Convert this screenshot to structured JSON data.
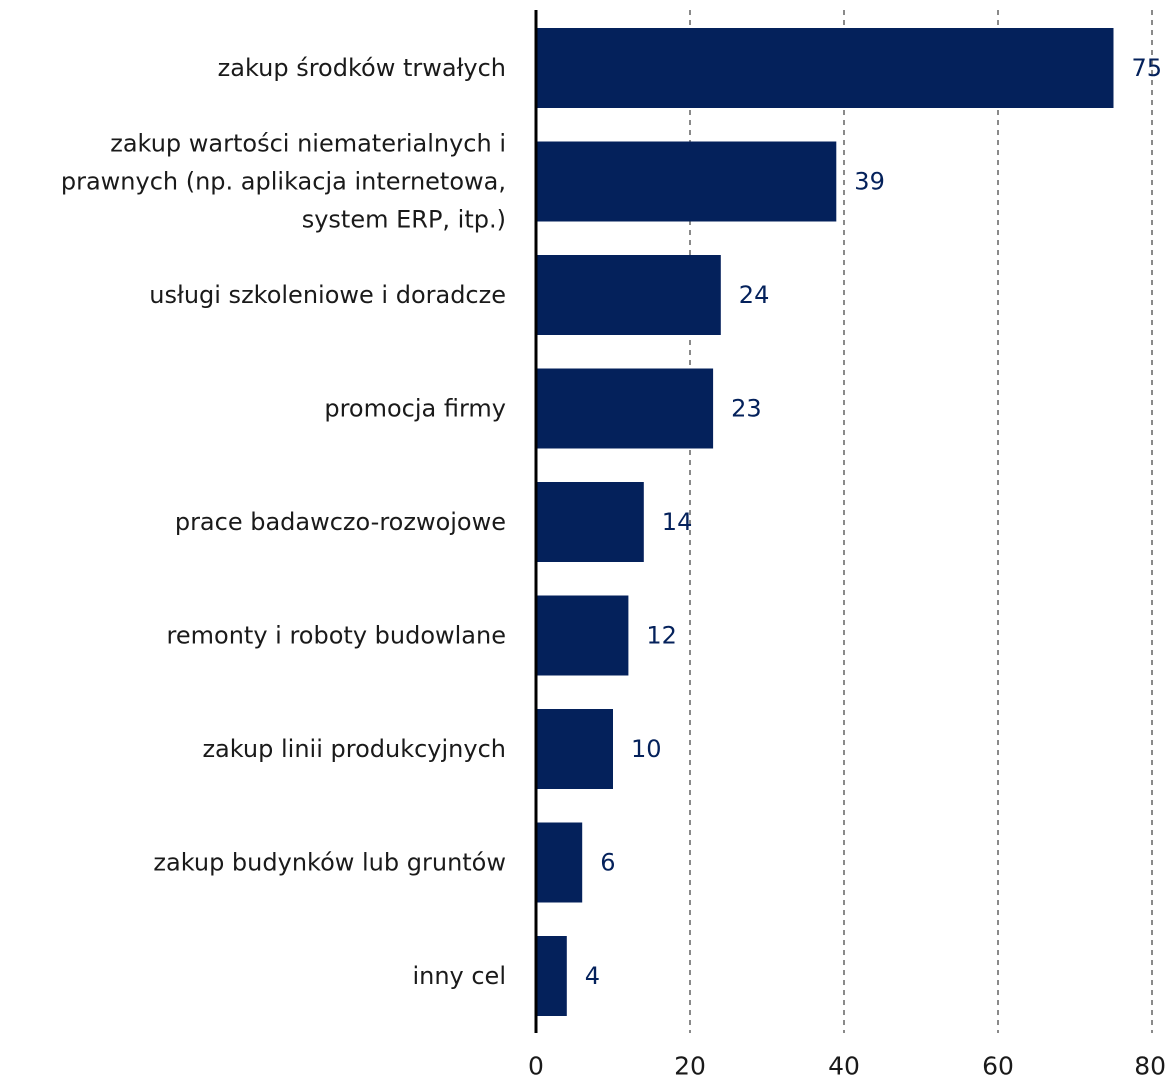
{
  "chart_data": {
    "type": "bar",
    "orientation": "horizontal",
    "categories": [
      "zakup środków trwałych",
      "zakup wartości niematerialnych i prawnych (np. aplikacja internetowa, system ERP, itp.)",
      "usługi szkoleniowe i doradcze",
      "promocja firmy",
      "prace badawczo-rozwojowe",
      "remonty i roboty budowlane",
      "zakup linii produkcyjnych",
      "zakup budynków lub gruntów",
      "inny cel"
    ],
    "category_lines": [
      [
        "zakup środków trwałych"
      ],
      [
        "zakup wartości niematerialnych i",
        "prawnych (np. aplikacja internetowa,",
        "system ERP, itp.)"
      ],
      [
        "usługi szkoleniowe i doradcze"
      ],
      [
        "promocja firmy"
      ],
      [
        "prace badawczo-rozwojowe"
      ],
      [
        "remonty i roboty budowlane"
      ],
      [
        "zakup linii produkcyjnych"
      ],
      [
        "zakup budynków lub gruntów"
      ],
      [
        "inny cel"
      ]
    ],
    "values": [
      75,
      39,
      24,
      23,
      14,
      12,
      10,
      6,
      4
    ],
    "value_labels": [
      "75",
      "39",
      "24",
      "23",
      "14",
      "12",
      "10",
      "6",
      "4"
    ],
    "xlim": [
      0,
      80
    ],
    "xticks": [
      0,
      20,
      40,
      60,
      80
    ],
    "xtick_labels": [
      "0",
      "20",
      "40",
      "60",
      "80"
    ],
    "grid": "vertical dashed",
    "legend": "none",
    "colors": {
      "bar": "#04215b",
      "value_text": "#04215b",
      "axis": "#000000",
      "grid": "#8a8a8a"
    }
  }
}
